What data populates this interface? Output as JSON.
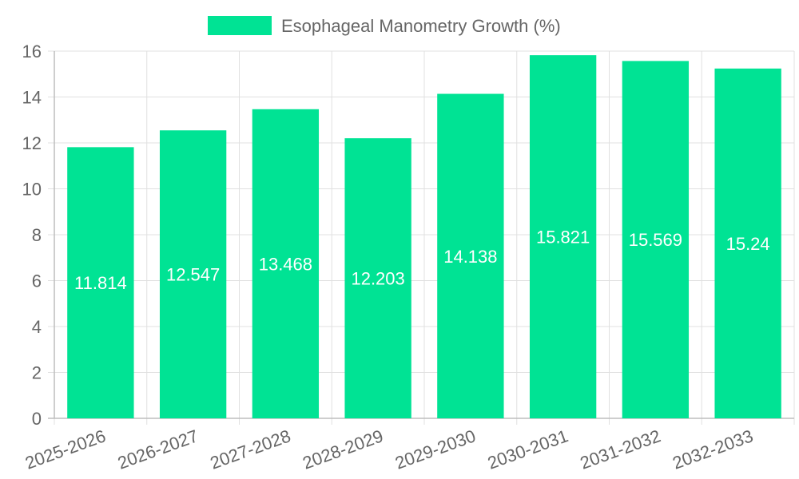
{
  "chart_data": {
    "type": "bar",
    "title": "",
    "xlabel": "",
    "ylabel": "",
    "categories": [
      "2025-2026",
      "2026-2027",
      "2027-2028",
      "2028-2029",
      "2029-2030",
      "2030-2031",
      "2031-2032",
      "2032-2033"
    ],
    "series": [
      {
        "name": "Esophageal Manometry Growth (%)",
        "values": [
          11.814,
          12.547,
          13.468,
          12.203,
          14.138,
          15.821,
          15.569,
          15.24
        ],
        "color": "#00e394"
      }
    ],
    "data_labels": [
      "11.814",
      "12.547",
      "13.468",
      "12.203",
      "14.138",
      "15.821",
      "15.569",
      "15.24"
    ],
    "ylim": [
      0,
      16
    ],
    "y_ticks": [
      0,
      2,
      4,
      6,
      8,
      10,
      12,
      14,
      16
    ],
    "y_tick_labels": [
      "0",
      "2",
      "4",
      "6",
      "8",
      "10",
      "12",
      "14",
      "16"
    ],
    "grid": true,
    "legend_position": "top-center",
    "x_tick_rotation": "angled"
  }
}
